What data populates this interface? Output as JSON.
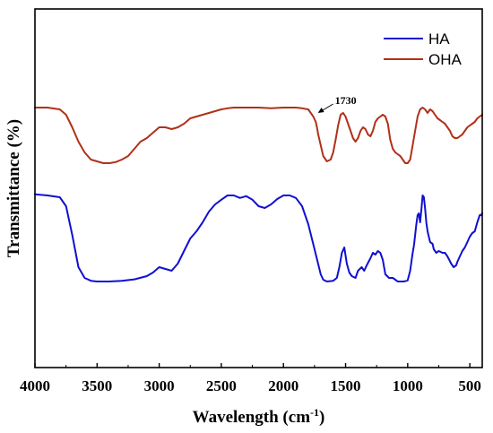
{
  "chart_data": {
    "type": "line",
    "title": "",
    "xlabel": "Wavelength (cm",
    "xlabel_sup": "-1",
    "xlabel_close": ")",
    "ylabel": "Transmittance (%)",
    "xlim": [
      4000,
      400
    ],
    "ylim": [
      0,
      100
    ],
    "x_ticks": [
      4000,
      3500,
      3000,
      2500,
      2000,
      1500,
      1000,
      500
    ],
    "y_ticks_labeled": false,
    "grid": false,
    "legend": "top-right",
    "annotation": {
      "text": "1730",
      "x": 1730,
      "y": 73.5,
      "arrow_to": [
        1730,
        71.0
      ]
    },
    "series": [
      {
        "name": "HA",
        "color": "#1010d0",
        "x": [
          4000,
          3900,
          3800,
          3750,
          3700,
          3650,
          3600,
          3550,
          3500,
          3400,
          3300,
          3200,
          3100,
          3050,
          3000,
          2950,
          2900,
          2850,
          2800,
          2750,
          2700,
          2650,
          2600,
          2550,
          2500,
          2450,
          2400,
          2350,
          2300,
          2250,
          2200,
          2150,
          2100,
          2050,
          2000,
          1950,
          1900,
          1850,
          1800,
          1750,
          1700,
          1680,
          1650,
          1600,
          1570,
          1550,
          1530,
          1510,
          1490,
          1470,
          1450,
          1420,
          1400,
          1370,
          1350,
          1330,
          1300,
          1280,
          1260,
          1240,
          1220,
          1200,
          1180,
          1150,
          1120,
          1100,
          1080,
          1050,
          1030,
          1000,
          980,
          960,
          950,
          930,
          920,
          910,
          900,
          890,
          880,
          870,
          860,
          850,
          840,
          820,
          800,
          790,
          770,
          750,
          720,
          700,
          680,
          650,
          630,
          610,
          600,
          580,
          560,
          540,
          520,
          500,
          480,
          460,
          440,
          420,
          410,
          400
        ],
        "y": [
          48.3,
          48.0,
          47.5,
          45.0,
          37.0,
          28.0,
          25.0,
          24.2,
          24.0,
          24.0,
          24.2,
          24.6,
          25.5,
          26.5,
          28.0,
          27.5,
          27.0,
          29.0,
          32.5,
          36.0,
          38.0,
          40.5,
          43.5,
          45.5,
          46.8,
          48.0,
          48.0,
          47.3,
          47.8,
          46.8,
          45.0,
          44.5,
          45.5,
          47.0,
          48.0,
          48.0,
          47.3,
          45.0,
          40.0,
          33.0,
          26.0,
          24.5,
          24.0,
          24.2,
          25.0,
          28.0,
          32.0,
          33.5,
          29.0,
          26.5,
          25.5,
          25.0,
          27.0,
          28.0,
          27.0,
          28.5,
          30.5,
          32.0,
          31.5,
          32.5,
          32.0,
          30.0,
          26.0,
          25.0,
          25.0,
          24.5,
          24.0,
          24.0,
          24.0,
          24.3,
          27.0,
          32.0,
          34.0,
          40.0,
          42.5,
          43.0,
          40.5,
          44.0,
          48.0,
          47.5,
          44.5,
          40.5,
          38.0,
          35.0,
          34.5,
          33.0,
          32.0,
          32.5,
          32.0,
          32.0,
          31.0,
          29.0,
          28.0,
          28.5,
          29.5,
          31.0,
          32.5,
          33.5,
          35.0,
          36.5,
          37.5,
          38.0,
          40.5,
          42.5,
          42.5,
          43.0
        ]
      },
      {
        "name": "OHA",
        "color": "#b0301a",
        "x": [
          4000,
          3900,
          3800,
          3750,
          3700,
          3650,
          3600,
          3550,
          3500,
          3450,
          3400,
          3350,
          3300,
          3250,
          3200,
          3150,
          3100,
          3050,
          3000,
          2950,
          2900,
          2850,
          2800,
          2750,
          2700,
          2650,
          2600,
          2550,
          2500,
          2450,
          2400,
          2350,
          2300,
          2250,
          2200,
          2100,
          2000,
          1900,
          1850,
          1800,
          1780,
          1760,
          1740,
          1730,
          1720,
          1700,
          1680,
          1650,
          1620,
          1600,
          1580,
          1560,
          1540,
          1520,
          1500,
          1480,
          1460,
          1440,
          1420,
          1400,
          1380,
          1360,
          1340,
          1320,
          1300,
          1280,
          1260,
          1240,
          1220,
          1200,
          1180,
          1160,
          1140,
          1120,
          1100,
          1080,
          1060,
          1040,
          1020,
          1000,
          980,
          960,
          940,
          920,
          900,
          880,
          860,
          840,
          820,
          800,
          780,
          760,
          740,
          720,
          700,
          680,
          660,
          640,
          620,
          600,
          580,
          560,
          540,
          520,
          500,
          480,
          460,
          440,
          420,
          400
        ],
        "y": [
          72.5,
          72.5,
          72.0,
          70.5,
          67.0,
          63.0,
          60.0,
          58.0,
          57.5,
          57.0,
          57.0,
          57.3,
          58.0,
          59.0,
          61.0,
          63.0,
          64.0,
          65.5,
          67.0,
          67.0,
          66.5,
          67.0,
          68.0,
          69.5,
          70.0,
          70.5,
          71.0,
          71.5,
          72.0,
          72.3,
          72.5,
          72.5,
          72.5,
          72.5,
          72.5,
          72.3,
          72.5,
          72.5,
          72.3,
          72.0,
          71.0,
          70.0,
          68.5,
          67.0,
          65.0,
          62.0,
          59.0,
          57.5,
          58.0,
          60.0,
          63.5,
          67.5,
          70.5,
          71.0,
          70.0,
          68.0,
          66.0,
          64.0,
          63.0,
          64.0,
          66.0,
          67.0,
          66.5,
          65.0,
          64.5,
          66.0,
          68.5,
          69.5,
          70.0,
          70.5,
          70.0,
          68.0,
          63.5,
          61.0,
          60.0,
          59.5,
          59.0,
          58.0,
          57.0,
          57.0,
          58.0,
          62.0,
          66.0,
          70.0,
          72.0,
          72.5,
          72.0,
          71.0,
          72.0,
          71.5,
          70.5,
          69.5,
          69.0,
          68.5,
          68.0,
          67.0,
          66.0,
          64.5,
          64.0,
          64.0,
          64.5,
          65.0,
          66.0,
          67.0,
          67.5,
          68.0,
          68.5,
          69.5,
          70.0,
          70.5
        ]
      }
    ]
  }
}
